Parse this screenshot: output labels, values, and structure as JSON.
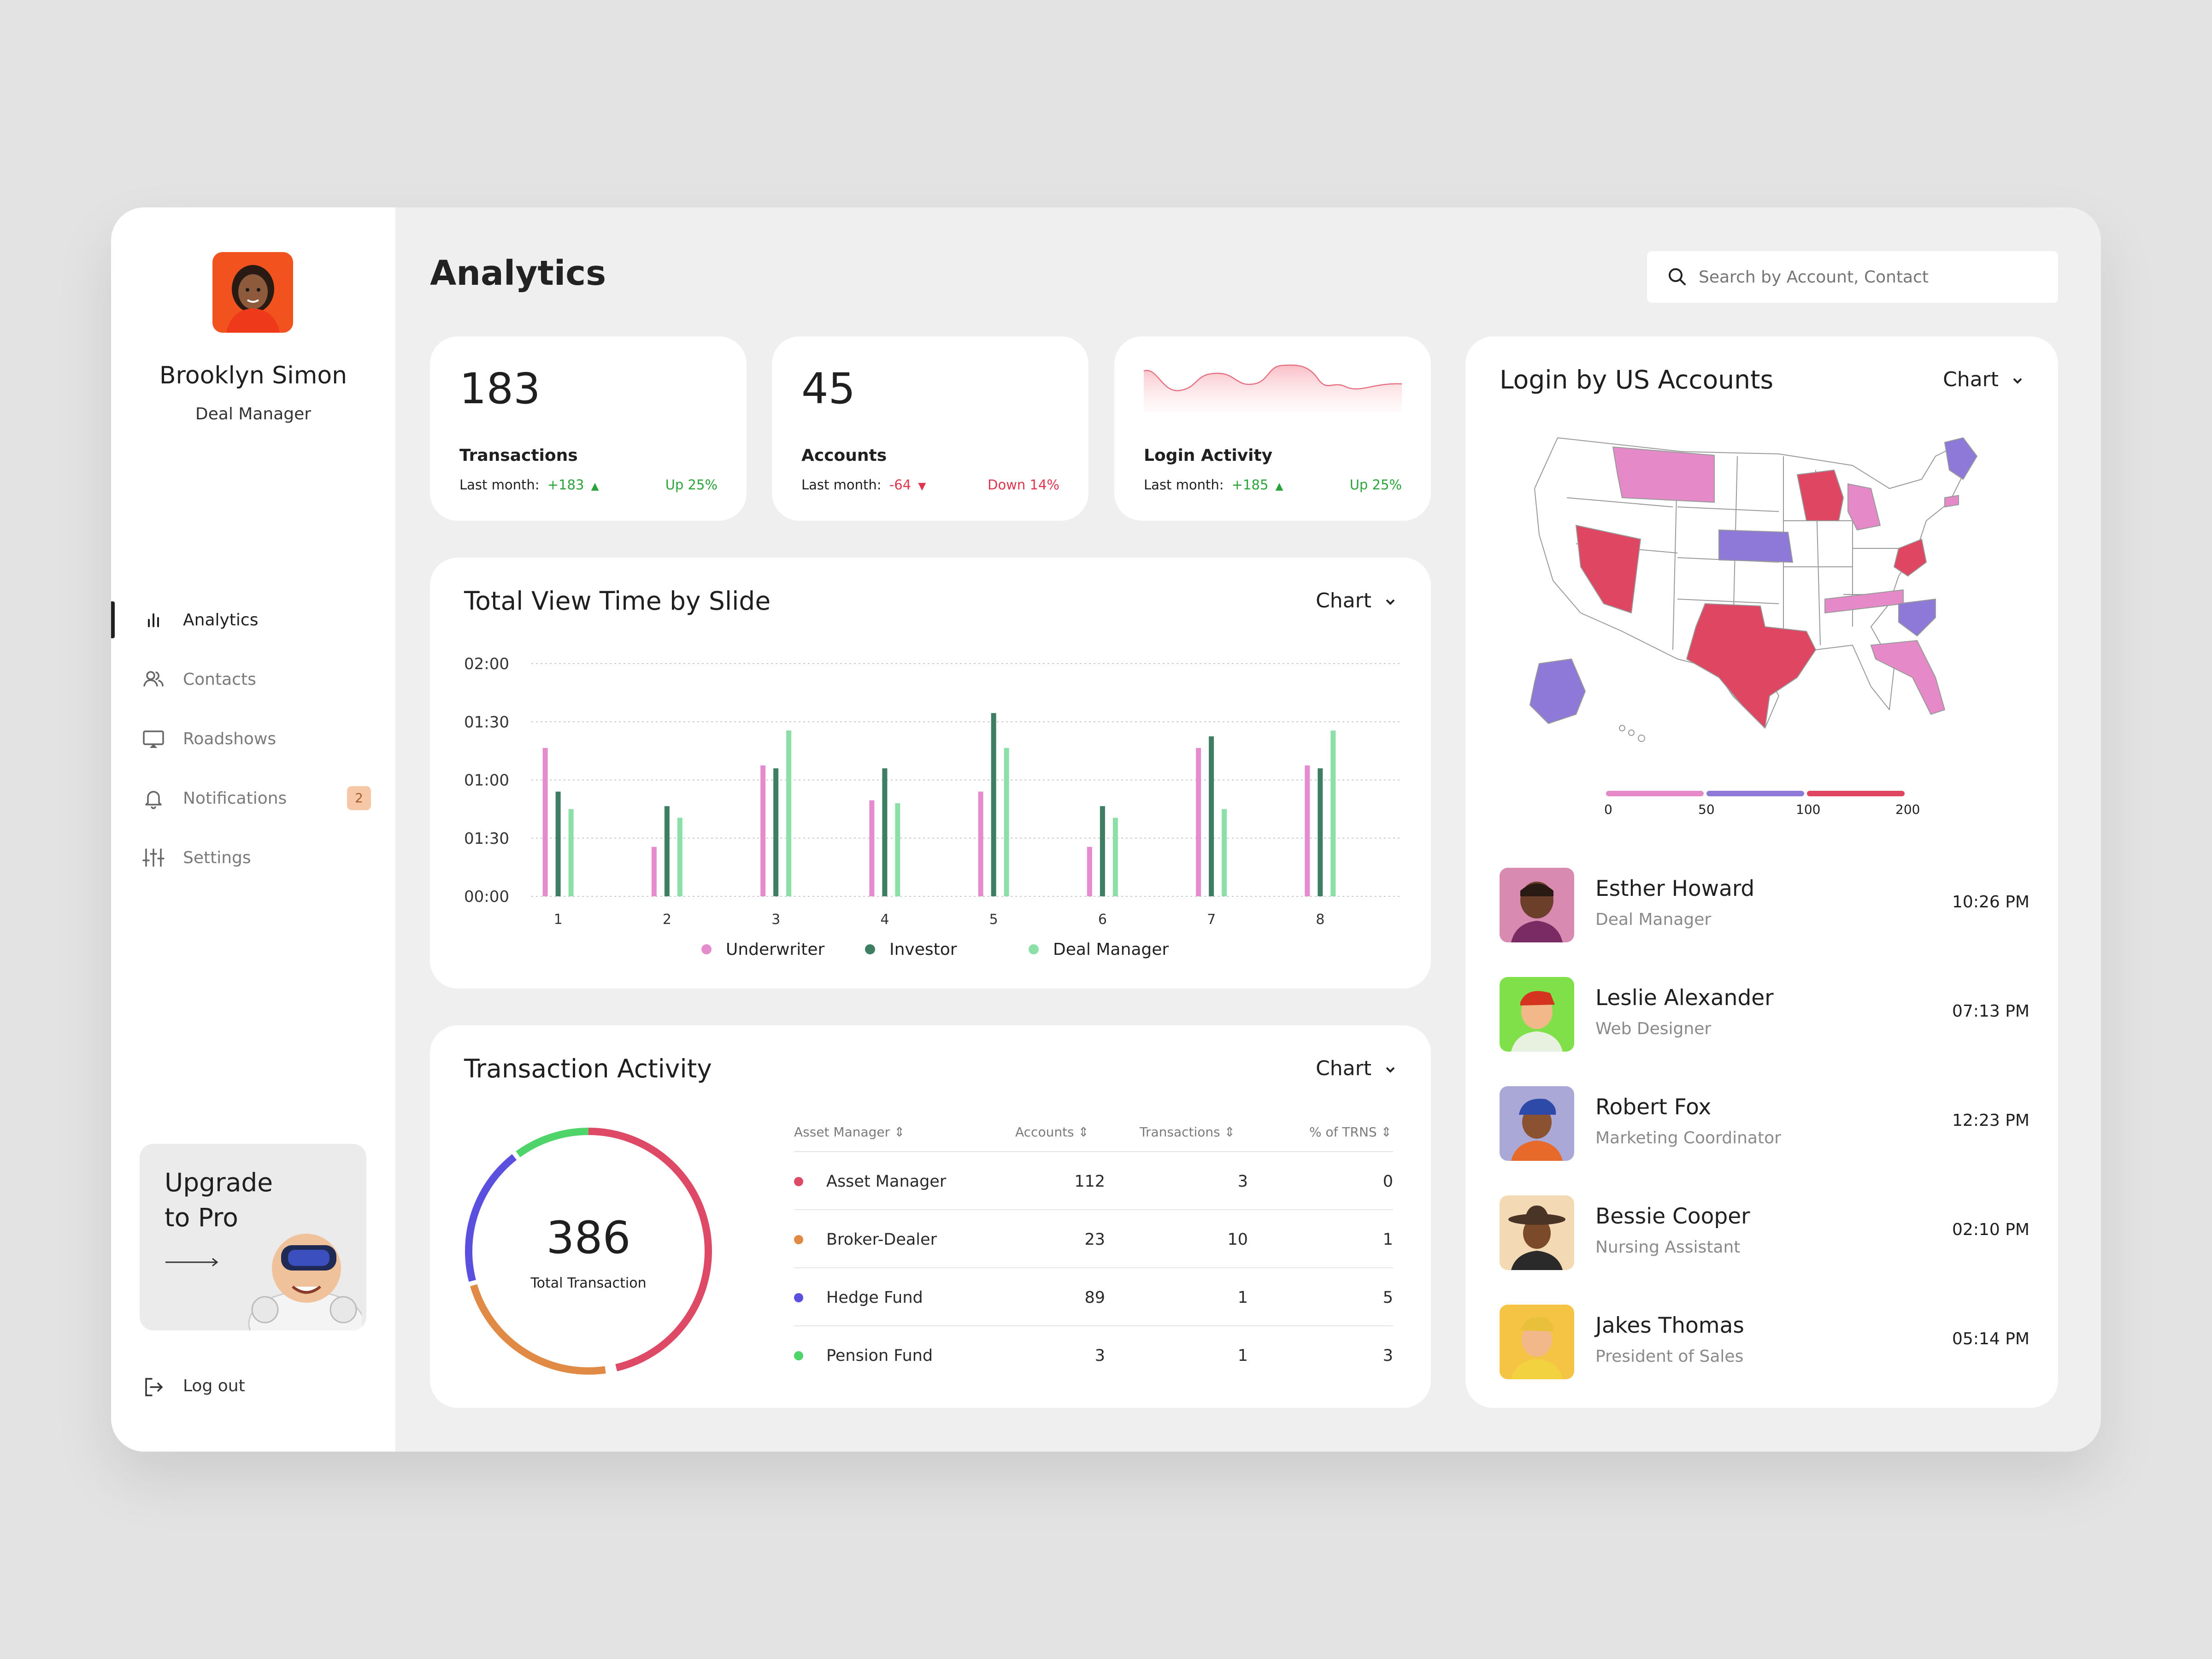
{
  "profile": {
    "name": "Brooklyn Simon",
    "role": "Deal Manager"
  },
  "nav": [
    {
      "label": "Analytics",
      "icon": "bar-chart-icon",
      "active": true
    },
    {
      "label": "Contacts",
      "icon": "users-icon"
    },
    {
      "label": "Roadshows",
      "icon": "cast-icon"
    },
    {
      "label": "Notifications",
      "icon": "bell-icon",
      "badge": "2"
    },
    {
      "label": "Settings",
      "icon": "sliders-icon"
    }
  ],
  "upgrade": {
    "line1": "Upgrade",
    "line2": "to Pro"
  },
  "logout": {
    "label": "Log out"
  },
  "header": {
    "title": "Analytics",
    "search_placeholder": "Search by Account, Contact"
  },
  "stats": [
    {
      "value": "183",
      "label": "Transactions",
      "prefix": "Last month:",
      "delta": "+183",
      "trend": "Up 25%",
      "dir": "up"
    },
    {
      "value": "45",
      "label": "Accounts",
      "prefix": "Last month:",
      "delta": "-64",
      "trend": "Down 14%",
      "dir": "down"
    },
    {
      "value": "",
      "label": "Login Activity",
      "prefix": "Last month:",
      "delta": "+185",
      "trend": "Up 25%",
      "dir": "up"
    }
  ],
  "view_time": {
    "title": "Total View Time by Slide",
    "dropdown": "Chart"
  },
  "chart_data": {
    "type": "bar",
    "title": "Total View Time by Slide",
    "categories": [
      "1",
      "2",
      "3",
      "4",
      "5",
      "6",
      "7",
      "8"
    ],
    "y_ticks": [
      "02:00",
      "01:30",
      "01:00",
      "01:30",
      "00:00"
    ],
    "ylim": [
      0,
      4
    ],
    "grid": true,
    "legend_position": "bottom",
    "series": [
      {
        "name": "Underwriter",
        "color": "#e48ccd",
        "values": [
          2.55,
          0.85,
          2.25,
          1.65,
          1.8,
          0.85,
          2.55,
          2.25
        ]
      },
      {
        "name": "Investor",
        "color": "#3e7f64",
        "values": [
          1.8,
          1.55,
          2.2,
          2.2,
          3.15,
          1.55,
          2.75,
          2.2
        ]
      },
      {
        "name": "Deal Manager",
        "color": "#8ddfa8",
        "values": [
          1.5,
          1.35,
          2.85,
          1.6,
          2.55,
          1.35,
          1.5,
          2.85
        ]
      }
    ]
  },
  "transaction": {
    "title": "Transaction Activity",
    "dropdown": "Chart",
    "total": "386",
    "total_label": "Total Transaction",
    "columns": [
      "Asset Manager",
      "Accounts",
      "Transactions",
      "% of TRNS"
    ],
    "rows": [
      {
        "name": "Asset Manager",
        "color": "#de4a66",
        "accounts": "112",
        "transactions": "3",
        "pct": "0"
      },
      {
        "name": "Broker-Dealer",
        "color": "#e08a45",
        "accounts": "23",
        "transactions": "10",
        "pct": "1"
      },
      {
        "name": "Hedge Fund",
        "color": "#5b4fe0",
        "accounts": "89",
        "transactions": "1",
        "pct": "5"
      },
      {
        "name": "Pension Fund",
        "color": "#4fd46a",
        "accounts": "3",
        "transactions": "1",
        "pct": "3"
      }
    ]
  },
  "map": {
    "title": "Login by US Accounts",
    "dropdown": "Chart",
    "scale_labels": [
      "0",
      "50",
      "100",
      "200"
    ],
    "colors": {
      "low": "#e589c8",
      "mid": "#8f79d8",
      "high": "#de4661"
    }
  },
  "contacts": [
    {
      "name": "Esther Howard",
      "role": "Deal Manager",
      "time": "10:26 PM",
      "bg": "#d98ab0",
      "avatar": "person-avatar"
    },
    {
      "name": "Leslie Alexander",
      "role": "Web Designer",
      "time": "07:13 PM",
      "bg": "#7fe04a",
      "avatar": "person-avatar"
    },
    {
      "name": "Robert Fox",
      "role": "Marketing Coordinator",
      "time": "12:23 PM",
      "bg": "#a9a8d6",
      "avatar": "person-avatar"
    },
    {
      "name": "Bessie Cooper",
      "role": "Nursing Assistant",
      "time": "02:10 PM",
      "bg": "#f3d9b4",
      "avatar": "person-avatar"
    },
    {
      "name": "Jakes Thomas",
      "role": "President of Sales",
      "time": "05:14 PM",
      "bg": "#f6c445",
      "avatar": "person-avatar"
    }
  ]
}
